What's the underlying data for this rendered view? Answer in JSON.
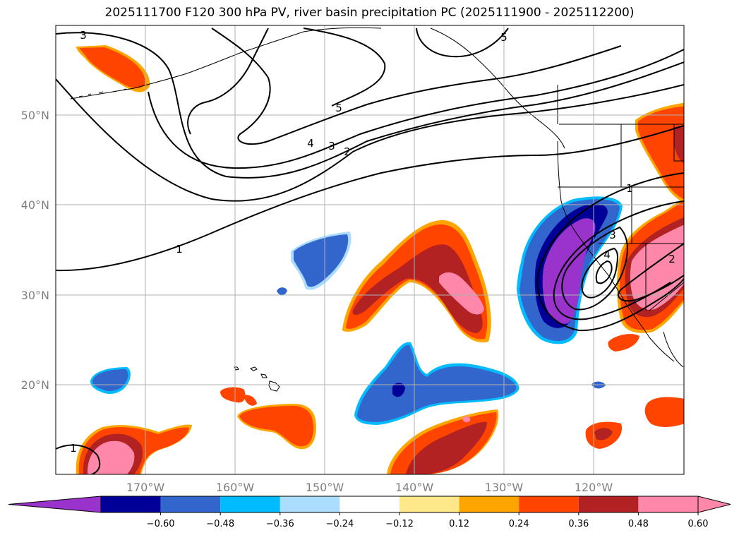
{
  "title": "2025111700 F120 300 hPa PV, river basin precipitation PC (2025111900 - 2025112200)",
  "lat_labels": [
    "50°N",
    "40°N",
    "30°N",
    "20°N"
  ],
  "lon_labels": [
    "170°W",
    "160°W",
    "150°W",
    "140°W",
    "130°W",
    "120°W"
  ],
  "colorbar": {
    "ticks": [
      "−0.60",
      "−0.48",
      "−0.36",
      "−0.24",
      "−0.12",
      "0.12",
      "0.24",
      "0.36",
      "0.48",
      "0.60"
    ],
    "colors": [
      "#9933cc",
      "#000099",
      "#3366cc",
      "#00bbff",
      "#aaddff",
      "#ffffff",
      "#ffe88a",
      "#ffa500",
      "#ff4400",
      "#b22222",
      "#ff88aa",
      "#ff88aa"
    ]
  },
  "contour_labels": [
    "3",
    "5",
    "5",
    "4",
    "3",
    "2",
    "1",
    "1",
    "1",
    "3",
    "4",
    "2"
  ]
}
